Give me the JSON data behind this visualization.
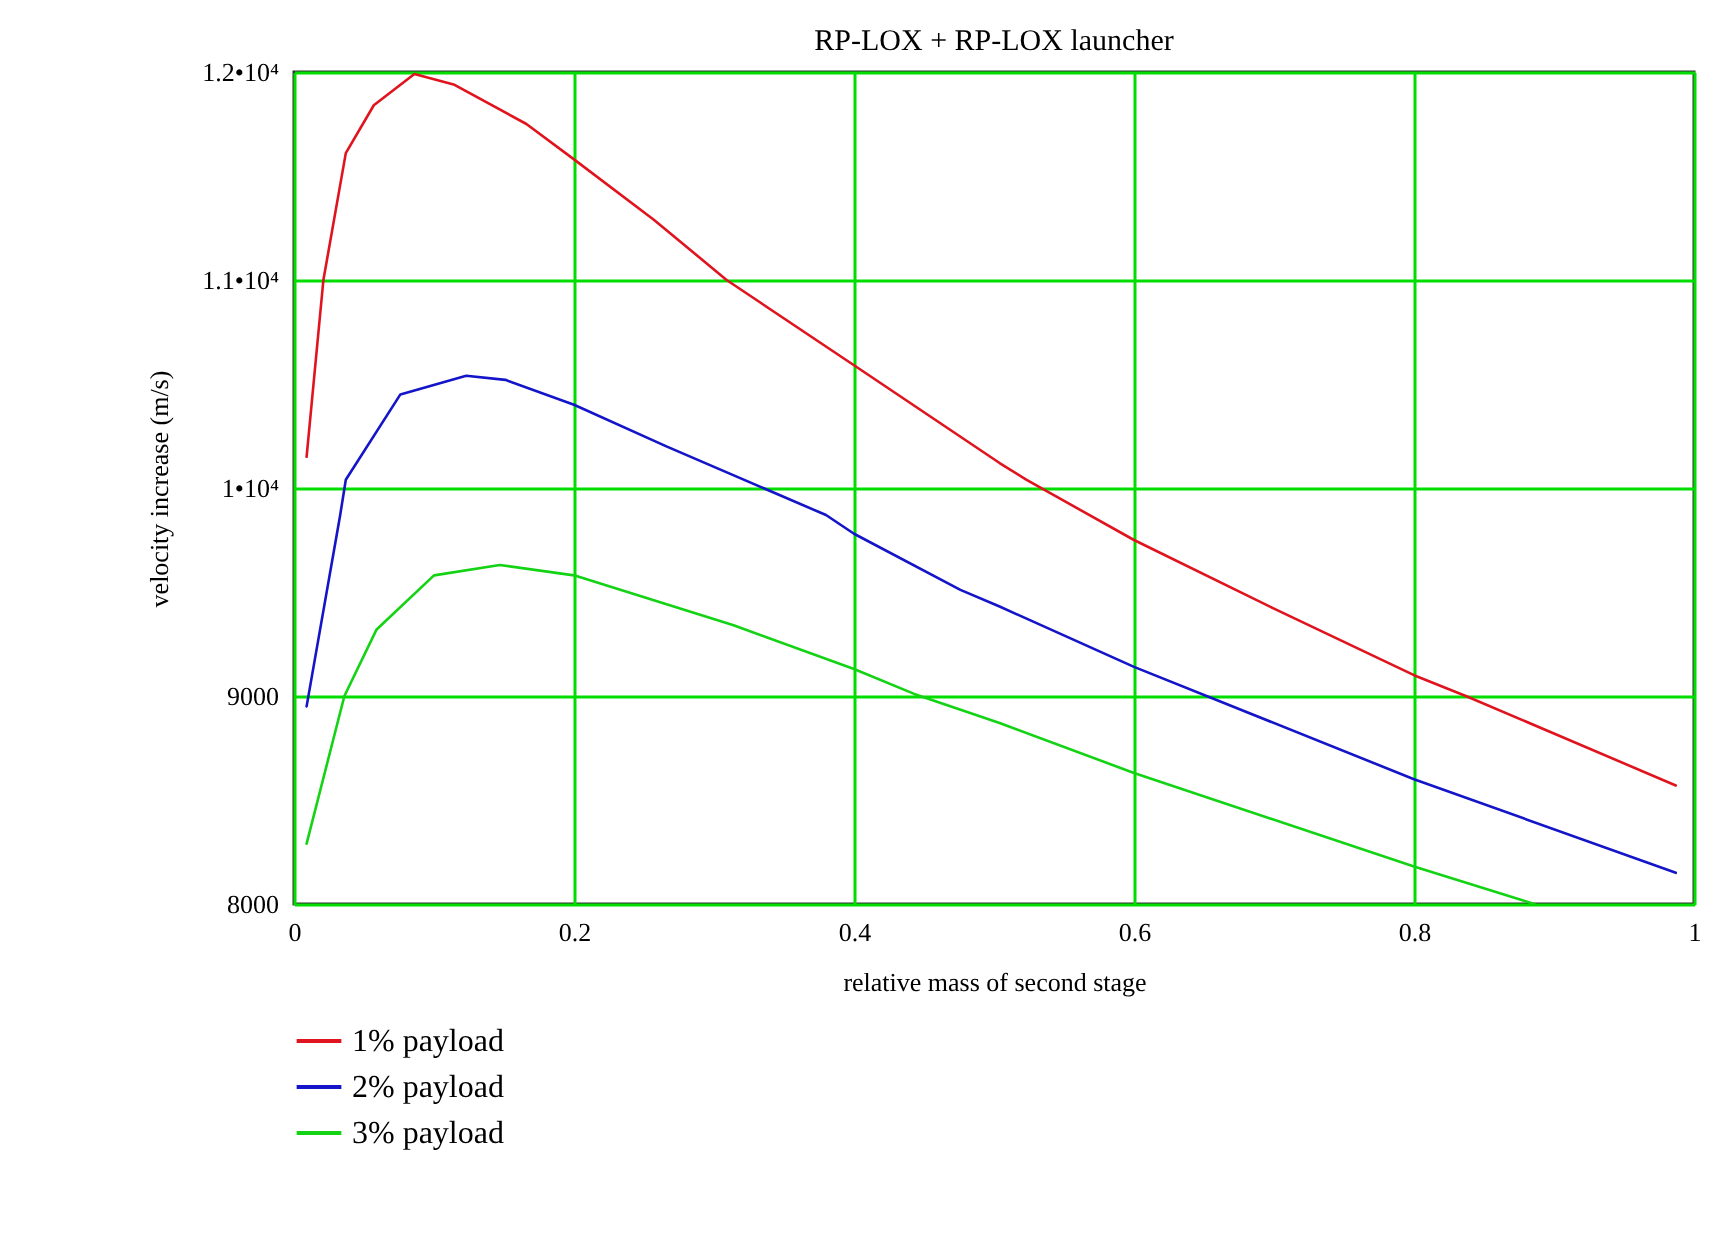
{
  "chart_data": {
    "type": "line",
    "title": "RP-LOX + RP-LOX launcher",
    "xlabel": "relative mass of second stage",
    "ylabel": "velocity increase (m/s)",
    "xlim": [
      0,
      1
    ],
    "xticks": [
      0,
      0.2,
      0.4,
      0.6,
      0.8,
      1
    ],
    "ylim": [
      8000,
      12000
    ],
    "yticks": [
      8000,
      9000,
      {
        "value": 10000,
        "label": "1•10⁴"
      },
      {
        "value": 11000,
        "label": "1.1•10⁴"
      },
      {
        "value": 12000,
        "label": "1.2•10⁴"
      }
    ],
    "grid": true,
    "legend": "bottom left",
    "series": [
      {
        "name": "1% payload",
        "color": "#e0141e",
        "x": [
          0.009,
          0.021,
          0.037,
          0.057,
          0.086,
          0.114,
          0.166,
          0.2,
          0.257,
          0.309,
          0.4,
          0.504,
          0.523,
          0.6,
          0.7,
          0.8,
          0.837,
          0.987
        ],
        "values": [
          10150,
          11000,
          11610,
          11840,
          11990,
          11940,
          11750,
          11580,
          11290,
          11000,
          10590,
          10120,
          10040,
          9750,
          9420,
          9100,
          9000,
          8570
        ]
      },
      {
        "name": "2% payload",
        "color": "#1414c8",
        "x": [
          0.009,
          0.033,
          0.037,
          0.076,
          0.123,
          0.151,
          0.2,
          0.266,
          0.38,
          0.4,
          0.476,
          0.504,
          0.6,
          0.8,
          0.987
        ],
        "values": [
          8950,
          9870,
          10040,
          10450,
          10540,
          10520,
          10400,
          10200,
          9870,
          9780,
          9510,
          9430,
          9140,
          8600,
          8150
        ]
      },
      {
        "name": "3% payload",
        "color": "#14d214",
        "x": [
          0.009,
          0.036,
          0.059,
          0.1,
          0.147,
          0.2,
          0.314,
          0.4,
          0.443,
          0.504,
          0.6,
          0.8,
          0.886
        ],
        "values": [
          8290,
          9000,
          9320,
          9580,
          9630,
          9580,
          9340,
          9130,
          9010,
          8870,
          8630,
          8180,
          8000
        ]
      }
    ]
  }
}
